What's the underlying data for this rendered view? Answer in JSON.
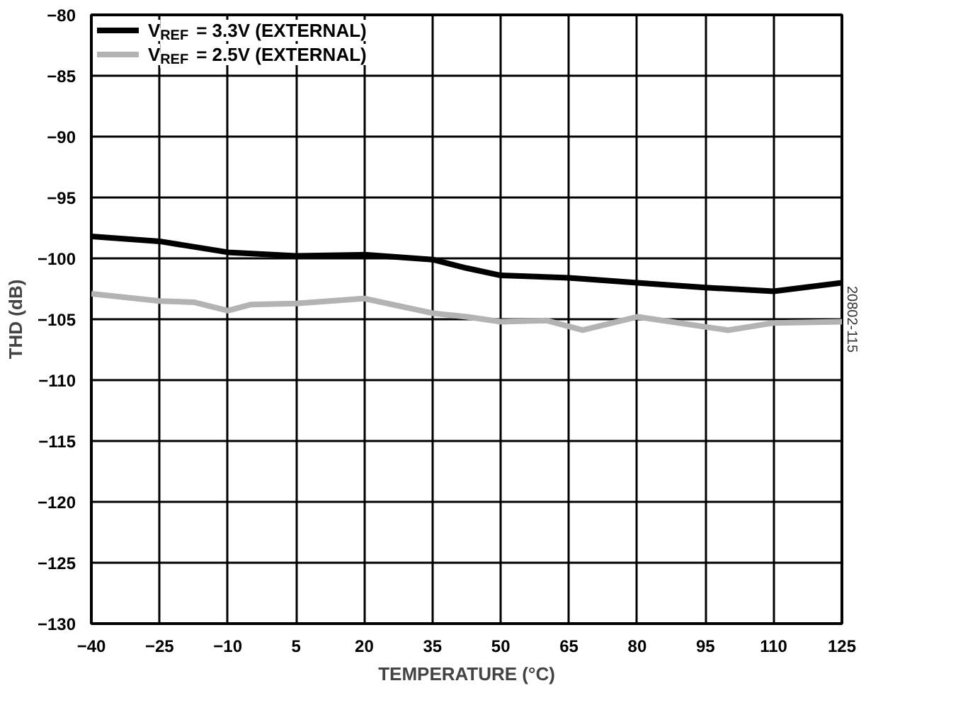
{
  "chart_data": {
    "type": "line",
    "xlabel": "TEMPERATURE (°C)",
    "ylabel": "THD (dB)",
    "x": [
      -40,
      -25,
      -10,
      5,
      20,
      35,
      42.5,
      50,
      65,
      80,
      95,
      110,
      125
    ],
    "series": [
      {
        "name": "V$_{REF}$ = 3.3V (EXTERNAL)",
        "color": "#000000",
        "values": [
          -98.2,
          -98.6,
          -99.5,
          -99.8,
          -99.7,
          -100.1,
          -100.8,
          -101.4,
          -101.6,
          -102.0,
          -102.4,
          -102.7,
          -102.0
        ]
      },
      {
        "name": "V$_{REF}$ = 2.5V (EXTERNAL)",
        "color": "#b3b3b3",
        "x": [
          -40,
          -25,
          -17.5,
          -10,
          -5,
          5,
          20,
          35,
          42.5,
          50,
          60,
          68,
          80,
          100,
          110,
          125
        ],
        "values": [
          -102.9,
          -103.5,
          -103.6,
          -104.3,
          -103.8,
          -103.7,
          -103.3,
          -104.5,
          -104.8,
          -105.2,
          -105.1,
          -105.9,
          -104.8,
          -105.9,
          -105.3,
          -105.2
        ]
      }
    ],
    "xlim": [
      -40,
      125
    ],
    "xticks": [
      -40,
      -25,
      -10,
      5,
      20,
      35,
      50,
      65,
      80,
      95,
      110,
      125
    ],
    "ylim": [
      -130,
      -80
    ],
    "yticks": [
      -130,
      -125,
      -120,
      -115,
      -110,
      -105,
      -100,
      -95,
      -90,
      -85,
      -80
    ],
    "grid": true,
    "legend": "top left",
    "marker": "none",
    "line_style": "solid",
    "annotations": [
      "20802-115"
    ]
  }
}
